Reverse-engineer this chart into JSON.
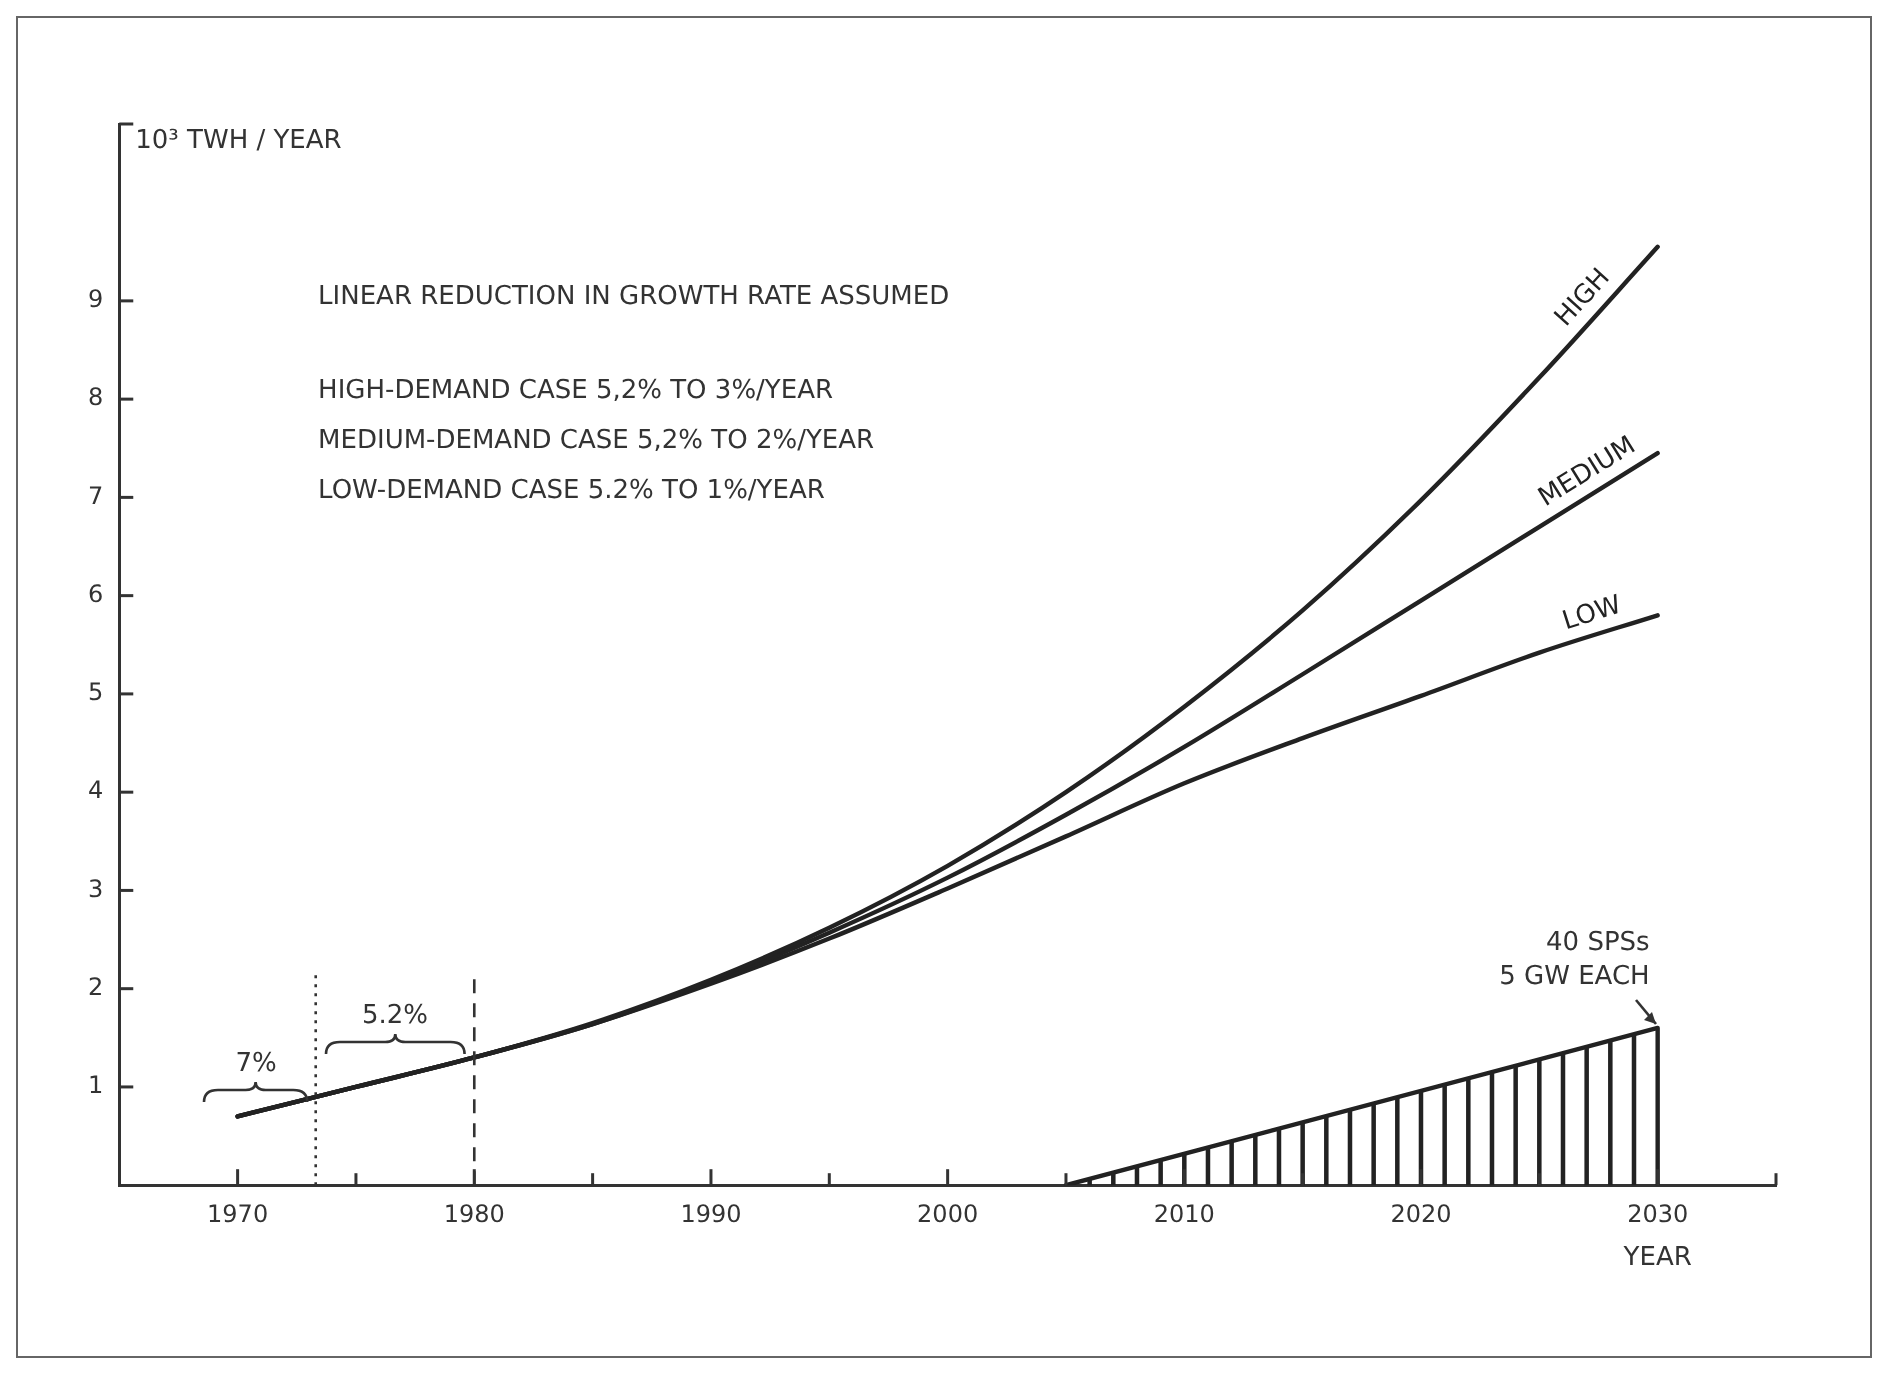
{
  "chart_data": {
    "type": "line",
    "ylabel": "10³ TWH / YEAR",
    "xlabel": "YEAR",
    "x": [
      1970,
      1975,
      1980,
      1985,
      1990,
      1995,
      2000,
      2005,
      2010,
      2015,
      2020,
      2025,
      2030
    ],
    "series": [
      {
        "name": "HIGH",
        "color": "#222222",
        "values": [
          0.7,
          1.0,
          1.3,
          1.65,
          2.09,
          2.62,
          3.25,
          4.0,
          4.87,
          5.85,
          6.97,
          8.22,
          9.55
        ]
      },
      {
        "name": "MEDIUM",
        "color": "#222222",
        "values": [
          0.7,
          1.0,
          1.3,
          1.64,
          2.07,
          2.57,
          3.13,
          3.77,
          4.46,
          5.2,
          5.95,
          6.7,
          7.45
        ]
      },
      {
        "name": "LOW",
        "color": "#222222",
        "values": [
          0.7,
          1.0,
          1.3,
          1.64,
          2.05,
          2.51,
          3.02,
          3.55,
          4.09,
          4.55,
          4.98,
          5.42,
          5.8
        ]
      },
      {
        "type": "bar",
        "color": "#222222",
        "x": [
          2006,
          2007,
          2008,
          2009,
          2010,
          2011,
          2012,
          2013,
          2014,
          2015,
          2016,
          2017,
          2018,
          2019,
          2020,
          2021,
          2022,
          2023,
          2024,
          2025,
          2026,
          2027,
          2028,
          2029
        ],
        "values": [
          0.06,
          0.13,
          0.19,
          0.26,
          0.32,
          0.38,
          0.45,
          0.51,
          0.58,
          0.64,
          0.7,
          0.77,
          0.83,
          0.9,
          0.96,
          1.02,
          1.09,
          1.15,
          1.22,
          1.28,
          1.34,
          1.41,
          1.47,
          1.54
        ]
      },
      {
        "type": "line",
        "color": "#222222",
        "x": [
          2005,
          2030,
          2030
        ],
        "values": [
          0,
          1.6,
          0
        ]
      }
    ],
    "xlim": [
      1965,
      2035
    ],
    "xticks": [
      1970,
      {
        "value": 1975,
        "label": null
      },
      1980,
      {
        "value": 1985,
        "label": null
      },
      1990,
      {
        "value": 1995,
        "label": null
      },
      2000,
      {
        "value": 2005,
        "label": null
      },
      2010,
      {
        "value": 2015,
        "label": null
      },
      2020,
      {
        "value": 2025,
        "label": null
      },
      2030,
      {
        "value": 2035,
        "label": null
      }
    ],
    "ylim": [
      0,
      10.8
    ],
    "yticks": [
      1,
      2,
      3,
      4,
      5,
      6,
      7,
      8,
      9,
      {
        "value": 10.8,
        "label": null
      }
    ],
    "ref_lines": [
      {
        "axis": "x",
        "value": 1973.3,
        "line_style": "dotted"
      },
      {
        "axis": "x",
        "value": 1980,
        "line_style": "dashed"
      }
    ],
    "annotations": [
      "LINEAR REDUCTION IN GROWTH RATE ASSUMED",
      "HIGH-DEMAND CASE 5,2% TO 3%/YEAR",
      "MEDIUM-DEMAND CASE 5,2% TO 2%/YEAR",
      "LOW-DEMAND CASE 5.2% TO 1%/YEAR",
      "7%",
      "5.2%",
      {
        "text": "40 SPSs\n5 GW EACH",
        "x": 2030,
        "y": 1.6
      }
    ],
    "legend": false,
    "grid": false,
    "marker": "none",
    "line_style": "solid"
  }
}
